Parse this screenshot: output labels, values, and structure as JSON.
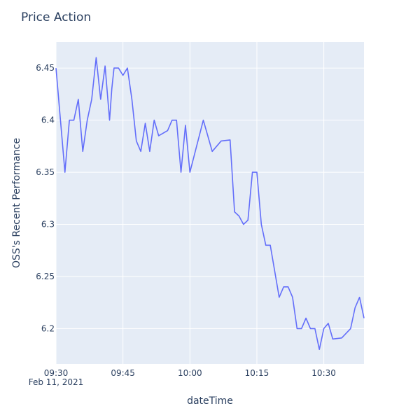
{
  "chart_data": {
    "type": "line",
    "title": "Price Action",
    "xlabel": "dateTime",
    "ylabel": "OSS's Recent Performance",
    "date_label": "Feb 11, 2021",
    "x_tick_labels": [
      "09:30",
      "09:45",
      "10:00",
      "10:15",
      "10:30"
    ],
    "y_tick_labels": [
      "6.2",
      "6.25",
      "6.3",
      "6.35",
      "6.4",
      "6.45"
    ],
    "x_ticks": [
      "09:30",
      "09:45",
      "10:00",
      "10:15",
      "10:30"
    ],
    "y_ticks": [
      6.2,
      6.25,
      6.3,
      6.35,
      6.4,
      6.45
    ],
    "xlim": [
      "09:30",
      "10:39"
    ],
    "ylim": [
      6.166,
      6.475
    ],
    "colors": {
      "plot_bg": "#e5ecf6",
      "grid": "#ffffff",
      "line": "#636efa",
      "text": "#2a3f5f"
    },
    "series": [
      {
        "x": [
          "09:30",
          "09:31",
          "09:32",
          "09:33",
          "09:34",
          "09:35",
          "09:36",
          "09:37",
          "09:38",
          "09:39",
          "09:40",
          "09:41",
          "09:42",
          "09:42.5",
          "09:43",
          "09:44",
          "09:45",
          "09:46",
          "09:47",
          "09:48",
          "09:49",
          "09:50",
          "09:51",
          "09:52",
          "09:53",
          "09:55",
          "09:56",
          "09:57",
          "09:58",
          "09:59",
          "10:00",
          "10:03",
          "10:05",
          "10:07",
          "10:09",
          "10:10",
          "10:11",
          "10:12",
          "10:13",
          "10:14",
          "10:15",
          "10:16",
          "10:17",
          "10:18",
          "10:20",
          "10:21",
          "10:22",
          "10:23",
          "10:24",
          "10:25",
          "10:26",
          "10:27",
          "10:28",
          "10:29",
          "10:30",
          "10:31",
          "10:32",
          "10:34",
          "10:36",
          "10:37",
          "10:38",
          "10:39"
        ],
        "y": [
          6.45,
          6.4,
          6.35,
          6.4,
          6.4,
          6.42,
          6.37,
          6.4,
          6.42,
          6.46,
          6.42,
          6.452,
          6.4,
          6.43,
          6.45,
          6.45,
          6.443,
          6.45,
          6.42,
          6.38,
          6.37,
          6.397,
          6.37,
          6.4,
          6.385,
          6.39,
          6.4,
          6.4,
          6.35,
          6.395,
          6.35,
          6.4,
          6.37,
          6.38,
          6.381,
          6.312,
          6.308,
          6.3,
          6.304,
          6.35,
          6.35,
          6.3,
          6.28,
          6.28,
          6.23,
          6.24,
          6.24,
          6.23,
          6.2,
          6.2,
          6.21,
          6.2,
          6.2,
          6.18,
          6.2,
          6.205,
          6.19,
          6.191,
          6.2,
          6.22,
          6.23,
          6.21
        ]
      }
    ]
  }
}
